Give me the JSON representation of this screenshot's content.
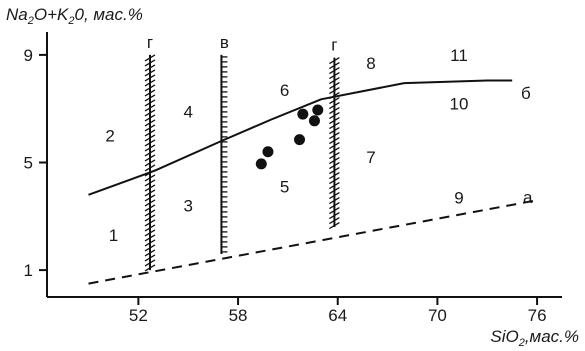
{
  "chart_data": {
    "type": "scatter",
    "ylabel": {
      "parts": [
        "Na",
        "2",
        "O+K",
        "2",
        "0, мас.%"
      ]
    },
    "xlabel": {
      "parts": [
        "SiO",
        "2",
        ",мас.%"
      ]
    },
    "xlim": [
      46.5,
      77.5
    ],
    "ylim": [
      0,
      10
    ],
    "x_ticks": [
      52,
      58,
      64,
      70,
      76
    ],
    "y_ticks": [
      1,
      5,
      9
    ],
    "points": [
      {
        "x": 59.4,
        "y": 4.95
      },
      {
        "x": 59.8,
        "y": 5.4
      },
      {
        "x": 61.7,
        "y": 5.85
      },
      {
        "x": 61.9,
        "y": 6.8
      },
      {
        "x": 62.6,
        "y": 6.55
      },
      {
        "x": 62.8,
        "y": 6.95
      }
    ],
    "curves": [
      {
        "name": "б",
        "points": [
          [
            49,
            3.8
          ],
          [
            53,
            4.7
          ],
          [
            57,
            5.8
          ],
          [
            60,
            6.6
          ],
          [
            63,
            7.35
          ],
          [
            68,
            7.95
          ],
          [
            73,
            8.05
          ],
          [
            74.5,
            8.05
          ]
        ]
      },
      {
        "name": "а",
        "points": [
          [
            49,
            0.5
          ],
          [
            76,
            3.6
          ]
        ],
        "dashed": true
      }
    ],
    "vertical_lines": [
      {
        "name": "г",
        "x": 52.7,
        "y_range": [
          1.0,
          9.0
        ],
        "style": "hatched"
      },
      {
        "name": "в",
        "x": 57.0,
        "y_range": [
          1.6,
          9.0
        ],
        "style": "comb"
      },
      {
        "name": "г",
        "x": 63.8,
        "y_range": [
          2.6,
          8.9
        ],
        "style": "hatched"
      }
    ],
    "zone_labels": [
      {
        "text": "1",
        "x": 50.5,
        "y": 2.3
      },
      {
        "text": "2",
        "x": 50.3,
        "y": 6.0
      },
      {
        "text": "3",
        "x": 55.0,
        "y": 3.4
      },
      {
        "text": "4",
        "x": 55.0,
        "y": 6.9
      },
      {
        "text": "5",
        "x": 60.8,
        "y": 4.1
      },
      {
        "text": "6",
        "x": 60.8,
        "y": 7.7
      },
      {
        "text": "7",
        "x": 66.0,
        "y": 5.2
      },
      {
        "text": "8",
        "x": 66.0,
        "y": 8.7
      },
      {
        "text": "9",
        "x": 71.3,
        "y": 3.7
      },
      {
        "text": "10",
        "x": 71.3,
        "y": 7.2
      },
      {
        "text": "11",
        "x": 71.3,
        "y": 9.0
      }
    ]
  }
}
